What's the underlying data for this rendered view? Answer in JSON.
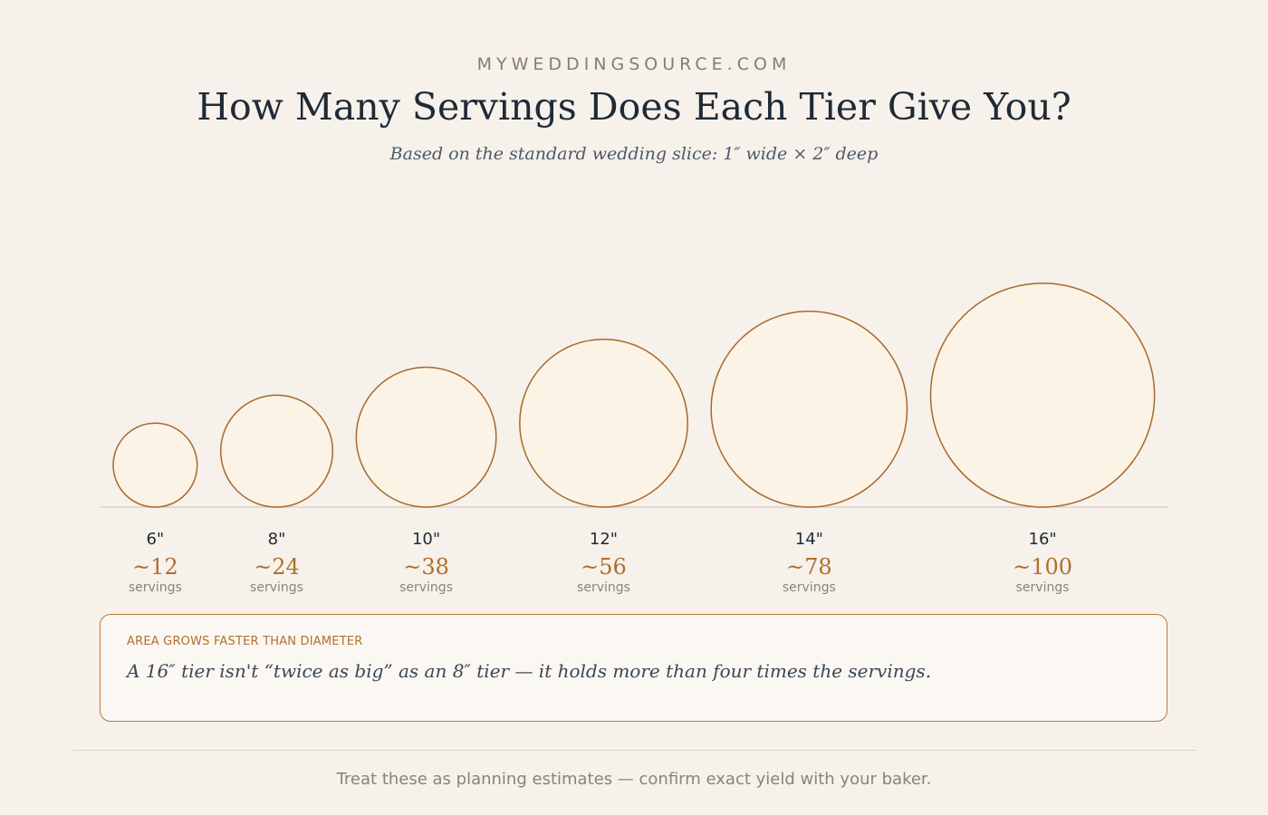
{
  "header": {
    "brand": "MYWEDDINGSOURCE.COM",
    "title": "How Many Servings Does Each Tier Give You?",
    "subtitle": "Based on the standard wedding slice: 1″ wide × 2″ deep"
  },
  "chart_data": {
    "type": "bubble",
    "categories": [
      "6\"",
      "8\"",
      "10\"",
      "12\"",
      "14\"",
      "16\""
    ],
    "diameters_in": [
      6,
      8,
      10,
      12,
      14,
      16
    ],
    "servings_labels": [
      "~12",
      "~24",
      "~38",
      "~56",
      "~78",
      "~100"
    ],
    "servings": [
      12,
      24,
      38,
      56,
      78,
      100
    ],
    "unit_label": "servings",
    "colors": {
      "fill": "#fbf3e6",
      "stroke": "#a8692a",
      "value": "#b06f2c",
      "size_label": "#1f2a35",
      "baseline": "#c9c4be"
    }
  },
  "callout": {
    "label": "AREA GROWS FASTER THAN DIAMETER",
    "text": "A 16″ tier isn't “twice as big” as an 8″ tier — it holds more than four times the servings."
  },
  "footer": {
    "note": "Treat these as planning estimates — confirm exact yield with your baker."
  }
}
